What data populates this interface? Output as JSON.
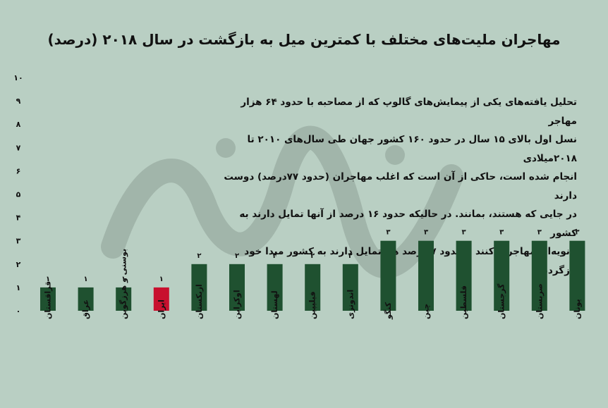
{
  "chart_data": {
    "type": "bar",
    "title": "مهاجران ملیت‌های مختلف با کمترین میل به بازگشت در سال ۲۰۱۸ (درصد)",
    "annotation": "تحلیل یافته‌های یکی از پیمایش‌های گالوپ که از مصاحبه با حدود ۶۴ هزار مهاجر\nنسل اول بالای ۱۵ سال در حدود ۱۶۰ کشور جهان طی سال‌های ۲۰۱۰ تا ۲۰۱۸میلادی\nانجام شده است، حاکی از آن است که اغلب مهاجران (حدود ۷۷درصد) دوست دارند\nدر جایی که هستند، بمانند. در حالیکه حدود ۱۶ درصد از آنها تمایل دارند به کشور\nثانویه‌ای مهاجرت کنند و حدود ۷ درصد هم تمایل دارند به کشور مبدا خود بازگردند",
    "categories": [
      "قزاقستان",
      "عراق",
      "بوسنی و هرزگوین",
      "ایران",
      "ازبکستان",
      "اوکراین",
      "لهستان",
      "فیلیپین",
      "اندونزی",
      "کنگو",
      "چین",
      "فلسطین",
      "گرجستان",
      "صربستان",
      "یونان"
    ],
    "values": [
      1,
      1,
      1,
      1,
      2,
      2,
      2,
      2,
      2,
      3,
      3,
      3,
      3,
      3,
      3
    ],
    "value_labels": [
      "۱",
      "۱",
      "۱",
      "۱",
      "۲",
      "۲",
      "۲",
      "۲",
      "۲",
      "۳",
      "۳",
      "۳",
      "۳",
      "۳",
      "۳"
    ],
    "y_tick_labels": [
      "۰",
      "۱",
      "۲",
      "۳",
      "۴",
      "۵",
      "۶",
      "۷",
      "۸",
      "۹",
      "۱۰"
    ],
    "ylim": [
      0,
      10
    ],
    "highlight_category": "ایران",
    "grid": false,
    "colors": {
      "background": "#b9cfc3",
      "bar": "#1f5130",
      "highlight": "#c8102e",
      "text": "#111111",
      "watermark": "#000000"
    }
  }
}
